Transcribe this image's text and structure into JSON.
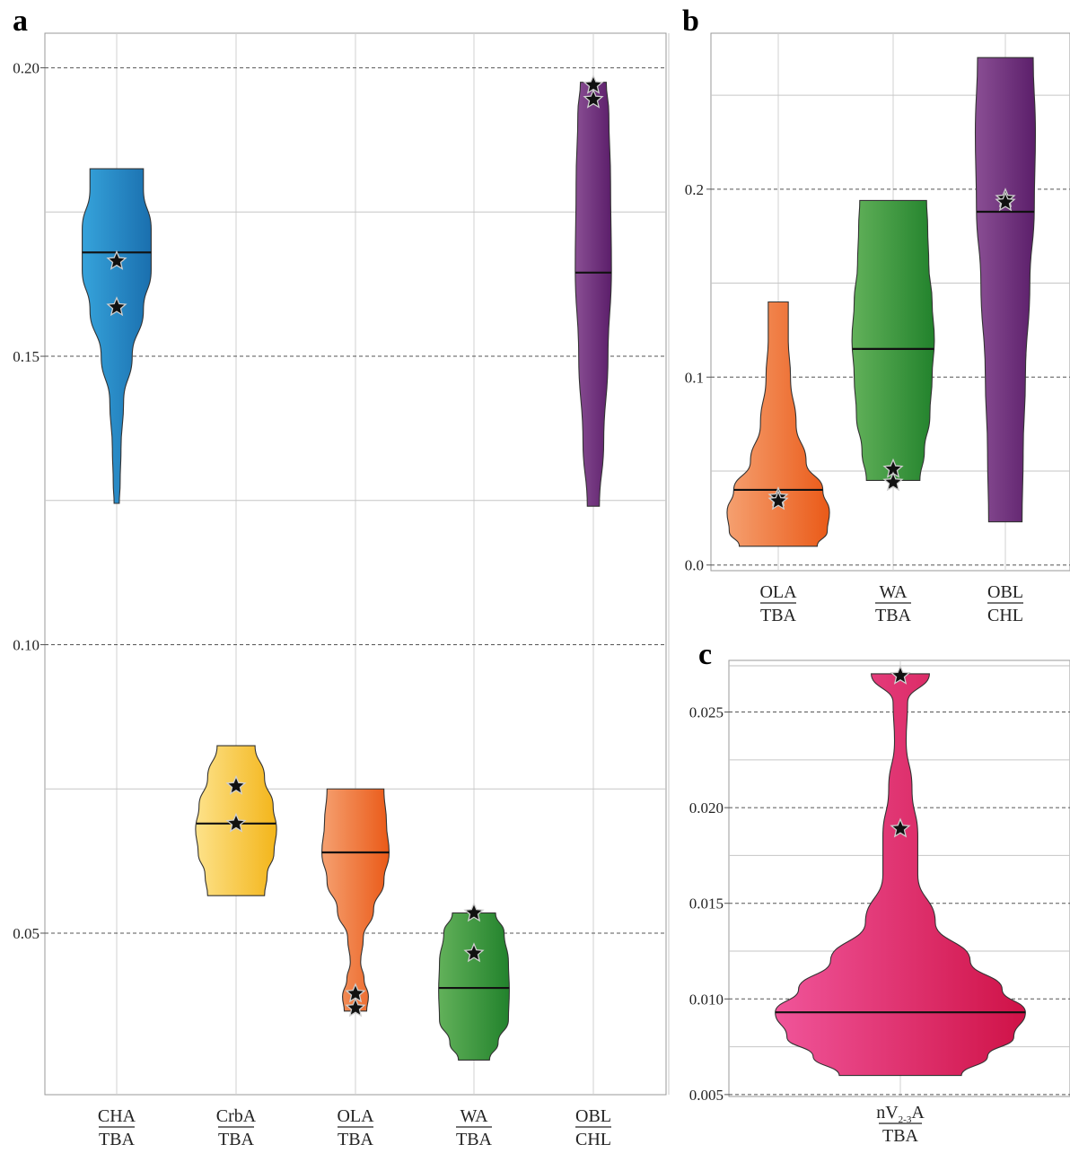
{
  "chart_data": [
    {
      "panel": "a",
      "type": "violin",
      "yticks": [
        "0.05",
        "0.10",
        "0.15",
        "0.20"
      ],
      "ylim": [
        0.022,
        0.206
      ],
      "grid": true,
      "categories": [
        {
          "num": "CHA",
          "den": "TBA",
          "min": 0.1245,
          "max": 0.1825,
          "median": 0.168,
          "points": [
            0.1665,
            0.1585
          ],
          "color_left": "#36a3db",
          "color_right": "#1a6fae",
          "widths": [
            [
              0.1245,
              0.06
            ],
            [
              0.128,
              0.08
            ],
            [
              0.134,
              0.1
            ],
            [
              0.142,
              0.16
            ],
            [
              0.15,
              0.36
            ],
            [
              0.158,
              0.62
            ],
            [
              0.165,
              0.8
            ],
            [
              0.172,
              0.8
            ],
            [
              0.179,
              0.62
            ],
            [
              0.1825,
              0.62
            ]
          ]
        },
        {
          "num": "CrbA",
          "den": "TBA",
          "min": 0.0565,
          "max": 0.0825,
          "median": 0.069,
          "points": [
            0.0755,
            0.069
          ],
          "color_left": "#fde28a",
          "color_right": "#f3b51a",
          "widths": [
            [
              0.0565,
              0.66
            ],
            [
              0.06,
              0.72
            ],
            [
              0.064,
              0.88
            ],
            [
              0.068,
              0.94
            ],
            [
              0.072,
              0.86
            ],
            [
              0.077,
              0.66
            ],
            [
              0.0825,
              0.44
            ]
          ]
        },
        {
          "num": "OLA",
          "den": "TBA",
          "min": 0.0365,
          "max": 0.075,
          "median": 0.064,
          "points": [
            0.0395,
            0.037
          ],
          "color_left": "#f5a070",
          "color_right": "#ea5a18",
          "widths": [
            [
              0.0365,
              0.26
            ],
            [
              0.039,
              0.3
            ],
            [
              0.042,
              0.2
            ],
            [
              0.045,
              0.12
            ],
            [
              0.049,
              0.18
            ],
            [
              0.054,
              0.42
            ],
            [
              0.059,
              0.66
            ],
            [
              0.064,
              0.78
            ],
            [
              0.069,
              0.72
            ],
            [
              0.075,
              0.66
            ]
          ]
        },
        {
          "num": "WA",
          "den": "TBA",
          "min": 0.028,
          "max": 0.0535,
          "median": 0.0405,
          "points": [
            0.0535,
            0.0465
          ],
          "color_left": "#62b15a",
          "color_right": "#22822c",
          "widths": [
            [
              0.028,
              0.36
            ],
            [
              0.031,
              0.56
            ],
            [
              0.035,
              0.8
            ],
            [
              0.04,
              0.82
            ],
            [
              0.045,
              0.8
            ],
            [
              0.05,
              0.7
            ],
            [
              0.0535,
              0.5
            ]
          ]
        },
        {
          "num": "OBL",
          "den": "CHL",
          "min": 0.124,
          "max": 0.1975,
          "median": 0.1645,
          "points": [
            0.197,
            0.1945
          ],
          "color_left": "#8a4f94",
          "color_right": "#5b1e6a",
          "widths": [
            [
              0.124,
              0.14
            ],
            [
              0.135,
              0.24
            ],
            [
              0.15,
              0.34
            ],
            [
              0.165,
              0.42
            ],
            [
              0.18,
              0.4
            ],
            [
              0.192,
              0.36
            ],
            [
              0.1975,
              0.3
            ]
          ]
        }
      ]
    },
    {
      "panel": "b",
      "type": "violin",
      "yticks": [
        "0.0",
        "0.1",
        "0.2"
      ],
      "ylim": [
        -0.003,
        0.283
      ],
      "grid": true,
      "categories": [
        {
          "num": "OLA",
          "den": "TBA",
          "min": 0.01,
          "max": 0.14,
          "median": 0.04,
          "points": [
            0.036,
            0.034
          ],
          "color_left": "#f5a070",
          "color_right": "#ea5a18",
          "widths": [
            [
              0.01,
              0.7
            ],
            [
              0.018,
              0.88
            ],
            [
              0.028,
              0.92
            ],
            [
              0.04,
              0.8
            ],
            [
              0.055,
              0.5
            ],
            [
              0.075,
              0.32
            ],
            [
              0.1,
              0.22
            ],
            [
              0.12,
              0.18
            ],
            [
              0.14,
              0.18
            ]
          ]
        },
        {
          "num": "WA",
          "den": "TBA",
          "min": 0.045,
          "max": 0.194,
          "median": 0.115,
          "points": [
            0.051,
            0.044
          ],
          "color_left": "#62b15a",
          "color_right": "#22822c",
          "widths": [
            [
              0.045,
              0.48
            ],
            [
              0.06,
              0.56
            ],
            [
              0.08,
              0.66
            ],
            [
              0.1,
              0.7
            ],
            [
              0.12,
              0.74
            ],
            [
              0.14,
              0.7
            ],
            [
              0.16,
              0.64
            ],
            [
              0.18,
              0.62
            ],
            [
              0.194,
              0.6
            ]
          ]
        },
        {
          "num": "OBL",
          "den": "CHL",
          "min": 0.023,
          "max": 0.27,
          "median": 0.188,
          "points": [
            0.195,
            0.193
          ],
          "color_left": "#8a4f94",
          "color_right": "#5b1e6a",
          "widths": [
            [
              0.023,
              0.3
            ],
            [
              0.06,
              0.32
            ],
            [
              0.1,
              0.36
            ],
            [
              0.15,
              0.44
            ],
            [
              0.19,
              0.52
            ],
            [
              0.23,
              0.54
            ],
            [
              0.27,
              0.5
            ]
          ]
        }
      ]
    },
    {
      "panel": "c",
      "type": "violin",
      "yticks": [
        "0.005",
        "0.010",
        "0.015",
        "0.020",
        "0.025"
      ],
      "ylim": [
        0.0049,
        0.0277
      ],
      "grid": true,
      "categories": [
        {
          "num": "nV",
          "sub": "2-3",
          "num_suffix": "A",
          "den": "TBA",
          "min": 0.006,
          "max": 0.027,
          "median": 0.0093,
          "points": [
            0.0269,
            0.0189
          ],
          "color_left": "#f0559a",
          "color_right": "#cf1247",
          "widths": [
            [
              0.006,
              0.42
            ],
            [
              0.007,
              0.6
            ],
            [
              0.008,
              0.78
            ],
            [
              0.0093,
              0.86
            ],
            [
              0.0105,
              0.7
            ],
            [
              0.012,
              0.48
            ],
            [
              0.014,
              0.24
            ],
            [
              0.0165,
              0.12
            ],
            [
              0.0185,
              0.12
            ],
            [
              0.021,
              0.08
            ],
            [
              0.0235,
              0.04
            ],
            [
              0.0255,
              0.05
            ],
            [
              0.027,
              0.2
            ]
          ]
        }
      ]
    }
  ]
}
